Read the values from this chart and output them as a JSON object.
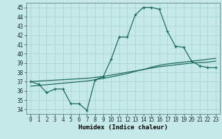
{
  "title": "",
  "xlabel": "Humidex (Indice chaleur)",
  "bg_color": "#c5e8e8",
  "grid_color": "#a8d0d0",
  "line_color": "#1e6b5a",
  "xlim": [
    -0.5,
    23.5
  ],
  "ylim": [
    33.5,
    45.5
  ],
  "yticks": [
    34,
    35,
    36,
    37,
    38,
    39,
    40,
    41,
    42,
    43,
    44,
    45
  ],
  "xticks": [
    0,
    1,
    2,
    3,
    4,
    5,
    6,
    7,
    8,
    9,
    10,
    11,
    12,
    13,
    14,
    15,
    16,
    17,
    18,
    19,
    20,
    21,
    22,
    23
  ],
  "humidex_curve": [
    37.0,
    36.7,
    35.8,
    36.2,
    36.2,
    34.6,
    34.6,
    33.9,
    37.2,
    37.5,
    39.4,
    41.8,
    41.8,
    44.2,
    45.0,
    45.0,
    44.8,
    42.4,
    40.8,
    40.7,
    39.2,
    38.7,
    38.5,
    38.5
  ],
  "trend_line1": [
    37.0,
    37.05,
    37.1,
    37.15,
    37.2,
    37.25,
    37.3,
    37.35,
    37.45,
    37.55,
    37.7,
    37.85,
    38.0,
    38.15,
    38.3,
    38.45,
    38.6,
    38.7,
    38.8,
    38.9,
    39.0,
    39.05,
    39.1,
    39.2
  ],
  "trend_line2": [
    36.5,
    36.58,
    36.66,
    36.74,
    36.82,
    36.9,
    36.98,
    37.06,
    37.2,
    37.34,
    37.5,
    37.68,
    37.86,
    38.1,
    38.3,
    38.55,
    38.75,
    38.9,
    39.0,
    39.1,
    39.2,
    39.3,
    39.4,
    39.5
  ]
}
